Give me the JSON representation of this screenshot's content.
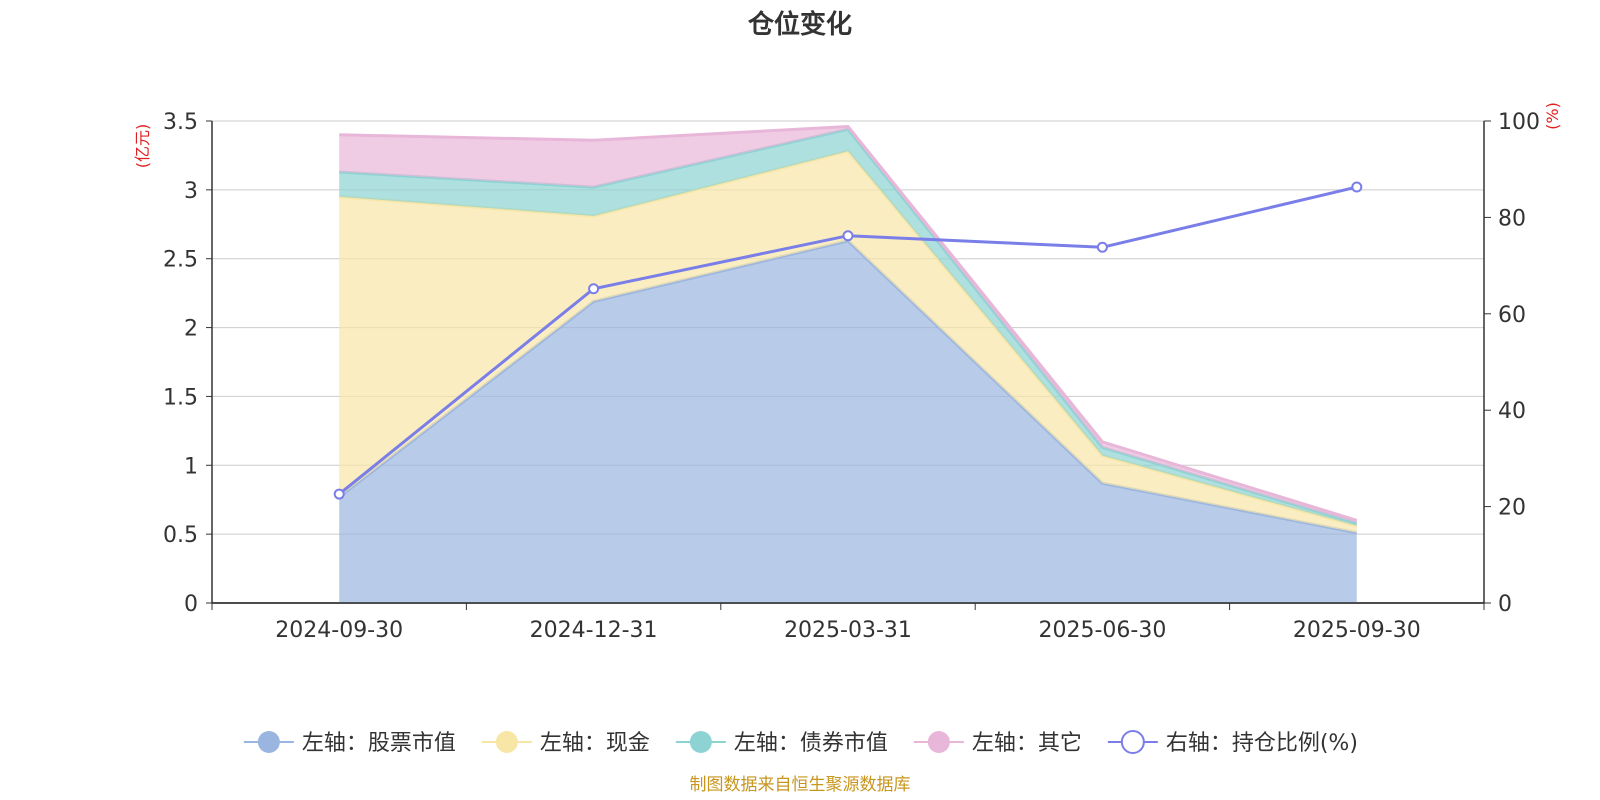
{
  "chart_data": {
    "type": "area",
    "title": "仓位变化",
    "left_axis_unit": "(亿元)",
    "right_axis_unit": "(%)",
    "categories": [
      "2024-09-30",
      "2024-12-31",
      "2025-03-31",
      "2025-06-30",
      "2025-09-30"
    ],
    "left_ylim": [
      0,
      3.5
    ],
    "left_ticks": [
      "0",
      "0.5",
      "1",
      "1.5",
      "2",
      "2.5",
      "3",
      "3.5"
    ],
    "right_ylim": [
      0,
      100
    ],
    "right_ticks": [
      "0",
      "20",
      "40",
      "60",
      "80",
      "100"
    ],
    "stacked_series": [
      {
        "name": "左轴：股票市值",
        "color": "#9ab5e0",
        "values": [
          0.77,
          2.19,
          2.63,
          0.87,
          0.51
        ]
      },
      {
        "name": "左轴：现金",
        "color": "#f8e6a6",
        "values": [
          2.18,
          0.62,
          0.65,
          0.2,
          0.05
        ]
      },
      {
        "name": "左轴：债券市值",
        "color": "#8dd3d3",
        "values": [
          0.18,
          0.21,
          0.16,
          0.06,
          0.02
        ]
      },
      {
        "name": "左轴：其它",
        "color": "#e8b6d8",
        "values": [
          0.27,
          0.34,
          0.02,
          0.04,
          0.02
        ]
      }
    ],
    "line_series": {
      "name": "右轴：持仓比例(%)",
      "color": "#7a7ee8",
      "values": [
        22.6,
        65.2,
        76.2,
        73.8,
        86.3
      ]
    },
    "source_note": "制图数据来自恒生聚源数据库"
  }
}
